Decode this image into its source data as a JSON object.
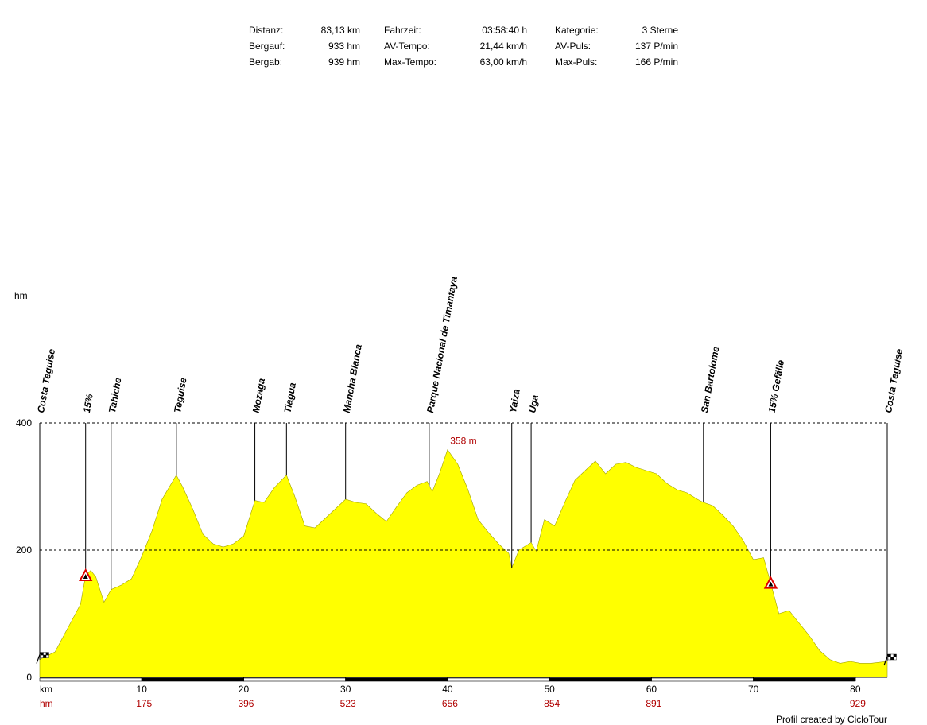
{
  "stats": [
    {
      "label": "Distanz:",
      "value": "83,13 km"
    },
    {
      "label": "Bergauf:",
      "value": "933 hm"
    },
    {
      "label": "Bergab:",
      "value": "939 hm"
    },
    {
      "label": "Fahrzeit:",
      "value": "03:58:40 h"
    },
    {
      "label": "AV-Tempo:",
      "value": "21,44 km/h"
    },
    {
      "label": "Max-Tempo:",
      "value": "63,00 km/h"
    },
    {
      "label": "Kategorie:",
      "value": "3 Sterne"
    },
    {
      "label": "AV-Puls:",
      "value": "137 P/min"
    },
    {
      "label": "Max-Puls:",
      "value": "166 P/min"
    }
  ],
  "credit": "Profil created by CicloTour",
  "chart_data": {
    "type": "area",
    "ylabel": "hm",
    "xlabel": "km",
    "xlim": [
      0,
      83.13
    ],
    "ylim": [
      0,
      400
    ],
    "y_ticks": [
      0,
      200,
      400
    ],
    "x_ticks": [
      10,
      20,
      30,
      40,
      50,
      60,
      70,
      80
    ],
    "grid": "dashed at 200 and 400",
    "fill_color": "#ffff00",
    "max_label": "358 m",
    "max_point": {
      "x": 40.0,
      "y": 358
    },
    "cumulative_climb_label": "hm",
    "cumulative_climb": [
      {
        "x": 10,
        "value": "175"
      },
      {
        "x": 20,
        "value": "396"
      },
      {
        "x": 30,
        "value": "523"
      },
      {
        "x": 40,
        "value": "656"
      },
      {
        "x": 50,
        "value": "854"
      },
      {
        "x": 60,
        "value": "891"
      },
      {
        "x": 80,
        "value": "929"
      }
    ],
    "waypoints": [
      {
        "name": "Costa Teguise",
        "x": 0.0
      },
      {
        "name": "15%",
        "x": 4.5
      },
      {
        "name": "Tahiche",
        "x": 7.0
      },
      {
        "name": "Teguise",
        "x": 13.4
      },
      {
        "name": "Mozaga",
        "x": 21.1
      },
      {
        "name": "Tiagua",
        "x": 24.2
      },
      {
        "name": "Mancha Blanca",
        "x": 30.0
      },
      {
        "name": "Parque Nacional de Timanfaya",
        "x": 38.2
      },
      {
        "name": "Yaiza",
        "x": 46.3
      },
      {
        "name": "Uga",
        "x": 48.2
      },
      {
        "name": "San Bartolome",
        "x": 65.1
      },
      {
        "name": "15% Gefälle",
        "x": 71.7
      },
      {
        "name": "Costa Teguise",
        "x": 83.13
      }
    ],
    "profile": [
      [
        0,
        28
      ],
      [
        1.5,
        40
      ],
      [
        3,
        85
      ],
      [
        4,
        115
      ],
      [
        4.5,
        160
      ],
      [
        5,
        168
      ],
      [
        5.5,
        158
      ],
      [
        6.3,
        118
      ],
      [
        7.0,
        138
      ],
      [
        8.0,
        145
      ],
      [
        9.0,
        155
      ],
      [
        10,
        190
      ],
      [
        11,
        230
      ],
      [
        12,
        280
      ],
      [
        13.4,
        318
      ],
      [
        14,
        300
      ],
      [
        15,
        265
      ],
      [
        16,
        225
      ],
      [
        17,
        210
      ],
      [
        18,
        205
      ],
      [
        19,
        210
      ],
      [
        20,
        222
      ],
      [
        21.1,
        278
      ],
      [
        22,
        275
      ],
      [
        23,
        298
      ],
      [
        24.2,
        318
      ],
      [
        25,
        285
      ],
      [
        26,
        238
      ],
      [
        27,
        235
      ],
      [
        28,
        250
      ],
      [
        29,
        265
      ],
      [
        30,
        280
      ],
      [
        31,
        275
      ],
      [
        32,
        273
      ],
      [
        33,
        258
      ],
      [
        34,
        245
      ],
      [
        35,
        268
      ],
      [
        36,
        290
      ],
      [
        37,
        302
      ],
      [
        38,
        308
      ],
      [
        38.5,
        292
      ],
      [
        39.2,
        320
      ],
      [
        40,
        358
      ],
      [
        41,
        335
      ],
      [
        42,
        295
      ],
      [
        43,
        248
      ],
      [
        44,
        228
      ],
      [
        45,
        210
      ],
      [
        46,
        195
      ],
      [
        46.3,
        172
      ],
      [
        47,
        200
      ],
      [
        48.2,
        212
      ],
      [
        48.7,
        198
      ],
      [
        49.5,
        248
      ],
      [
        50.5,
        238
      ],
      [
        51.5,
        275
      ],
      [
        52.5,
        310
      ],
      [
        53.5,
        325
      ],
      [
        54.5,
        340
      ],
      [
        55.5,
        320
      ],
      [
        56.5,
        335
      ],
      [
        57.5,
        338
      ],
      [
        58.5,
        330
      ],
      [
        59.5,
        325
      ],
      [
        60.5,
        320
      ],
      [
        61.5,
        305
      ],
      [
        62.5,
        295
      ],
      [
        63.5,
        290
      ],
      [
        64.5,
        280
      ],
      [
        65.1,
        275
      ],
      [
        66,
        270
      ],
      [
        67,
        255
      ],
      [
        68,
        238
      ],
      [
        69,
        215
      ],
      [
        70,
        185
      ],
      [
        71,
        188
      ],
      [
        71.7,
        148
      ],
      [
        72.5,
        100
      ],
      [
        73.5,
        105
      ],
      [
        74.5,
        85
      ],
      [
        75.5,
        65
      ],
      [
        76.5,
        42
      ],
      [
        77.5,
        28
      ],
      [
        78.5,
        22
      ],
      [
        79.5,
        25
      ],
      [
        80.5,
        22
      ],
      [
        81.5,
        22
      ],
      [
        83.13,
        25
      ]
    ]
  }
}
